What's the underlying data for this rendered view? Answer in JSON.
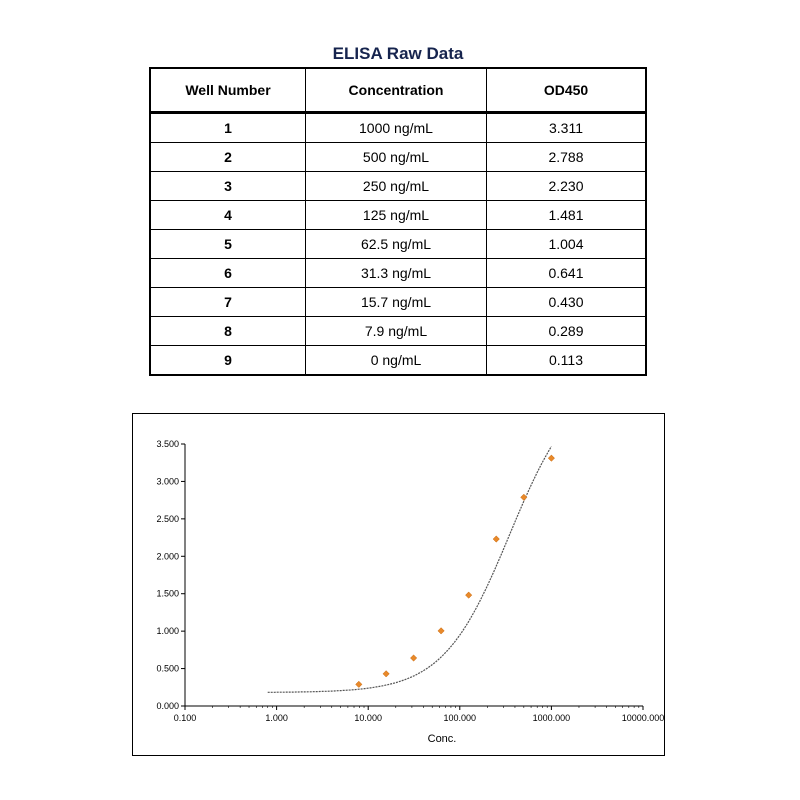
{
  "table": {
    "title": "ELISA Raw Data",
    "headers": [
      "Well Number",
      "Concentration",
      "OD450"
    ],
    "rows": [
      [
        "1",
        "1000 ng/mL",
        "3.311"
      ],
      [
        "2",
        "500 ng/mL",
        "2.788"
      ],
      [
        "3",
        "250 ng/mL",
        "2.230"
      ],
      [
        "4",
        "125 ng/mL",
        "1.481"
      ],
      [
        "5",
        "62.5 ng/mL",
        "1.004"
      ],
      [
        "6",
        "31.3 ng/mL",
        "0.641"
      ],
      [
        "7",
        "15.7 ng/mL",
        "0.430"
      ],
      [
        "8",
        "7.9 ng/mL",
        "0.289"
      ],
      [
        "9",
        "0 ng/mL",
        "0.113"
      ]
    ]
  },
  "chart_data": {
    "type": "scatter",
    "title": "",
    "xlabel": "Conc.",
    "ylabel": "",
    "x_scale": "log",
    "xlim": [
      0.1,
      10000
    ],
    "ylim": [
      0,
      3.5
    ],
    "x_tick_labels": [
      "0.100",
      "1.000",
      "10.000",
      "100.000",
      "1000.000",
      "10000.000"
    ],
    "y_tick_labels": [
      "0.000",
      "0.500",
      "1.000",
      "1.500",
      "2.000",
      "2.500",
      "3.000",
      "3.500"
    ],
    "grid": false,
    "legend": "none",
    "point_color": "#e8892a",
    "curve_color": "#555555",
    "series": [
      {
        "points": [
          {
            "x": 1000,
            "y": 3.311
          },
          {
            "x": 500,
            "y": 2.788
          },
          {
            "x": 250,
            "y": 2.23
          },
          {
            "x": 125,
            "y": 1.481
          },
          {
            "x": 62.5,
            "y": 1.004
          },
          {
            "x": 31.3,
            "y": 0.641
          },
          {
            "x": 15.7,
            "y": 0.43
          },
          {
            "x": 7.9,
            "y": 0.289
          }
        ]
      }
    ],
    "fit_curve": {
      "type": "4PL",
      "bottom": 0.18,
      "top": 4.4,
      "ec50": 350,
      "hill": 1.2,
      "x_range": [
        0.8,
        1000
      ]
    }
  }
}
